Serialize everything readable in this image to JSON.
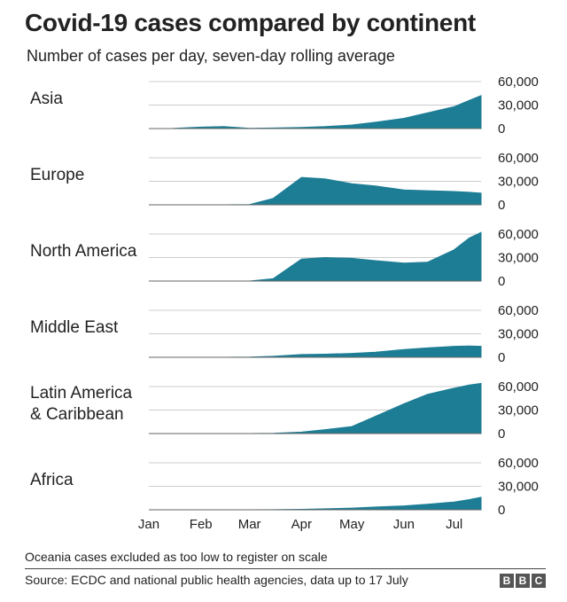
{
  "chart_data": {
    "type": "area",
    "title": "Covid-19 cases compared by continent",
    "subtitle": "Number of cases per day, seven-day rolling average",
    "x_ticks": [
      "Jan",
      "Feb",
      "Mar",
      "Apr",
      "May",
      "Jun",
      "Jul"
    ],
    "y_ticks": [
      "60,000",
      "30,000",
      "0"
    ],
    "ylim": [
      0,
      60000
    ],
    "x_dates": [
      "2020-01-01",
      "2020-01-15",
      "2020-02-01",
      "2020-02-15",
      "2020-03-01",
      "2020-03-15",
      "2020-04-01",
      "2020-04-15",
      "2020-05-01",
      "2020-05-15",
      "2020-06-01",
      "2020-06-15",
      "2020-07-01",
      "2020-07-10",
      "2020-07-17"
    ],
    "series": [
      {
        "name": "Asia",
        "values": [
          0,
          100,
          1800,
          2500,
          300,
          700,
          1500,
          2500,
          4500,
          8000,
          13000,
          20000,
          28000,
          36000,
          42000
        ]
      },
      {
        "name": "Europe",
        "values": [
          0,
          0,
          0,
          0,
          300,
          8000,
          35000,
          33000,
          27000,
          24000,
          19000,
          18000,
          17000,
          16000,
          15000
        ]
      },
      {
        "name": "North America",
        "values": [
          0,
          0,
          0,
          0,
          0,
          3000,
          28000,
          30000,
          29000,
          26000,
          23000,
          24000,
          40000,
          55000,
          62000
        ]
      },
      {
        "name": "Middle East",
        "values": [
          0,
          0,
          0,
          0,
          200,
          1200,
          3500,
          4000,
          5000,
          6500,
          10000,
          12000,
          14000,
          14500,
          14000
        ]
      },
      {
        "name": "Latin America\n& Caribbean",
        "values": [
          0,
          0,
          0,
          0,
          0,
          200,
          1800,
          5000,
          9000,
          22000,
          38000,
          50000,
          58000,
          62000,
          64000
        ]
      },
      {
        "name": "Africa",
        "values": [
          0,
          0,
          0,
          0,
          0,
          100,
          600,
          1200,
          2200,
          3500,
          5000,
          7000,
          10000,
          13000,
          16000
        ]
      }
    ]
  },
  "footer": {
    "note": "Oceania cases excluded as too low to register on scale",
    "source": "Source: ECDC and national public health agencies, data up to 17 July",
    "logo_letters": [
      "B",
      "B",
      "C"
    ]
  },
  "colors": {
    "area": "#1c7d95",
    "grid": "#cccccc",
    "axis": "#666666"
  }
}
